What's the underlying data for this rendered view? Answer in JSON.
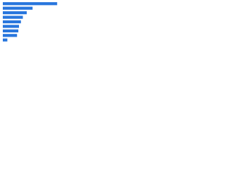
{
  "chart_data": {
    "type": "bar",
    "orientation": "horizontal",
    "categories": [
      null,
      null,
      null,
      null,
      null,
      null,
      null,
      null,
      null
    ],
    "values": [
      84,
      46,
      37,
      31,
      28,
      25,
      24,
      22,
      7
    ],
    "color": "#2876dd",
    "xlim": [
      0,
      100
    ]
  }
}
